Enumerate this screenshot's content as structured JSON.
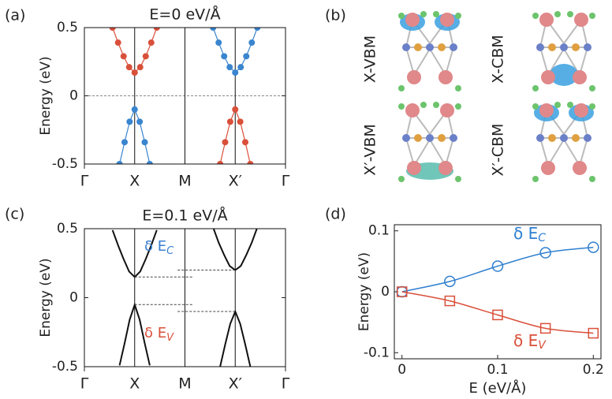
{
  "panel_labels": [
    "(a)",
    "(b)",
    "(c)",
    "(d)"
  ],
  "orbitals": {
    "labels": [
      "X-VBM",
      "X-CBM",
      "X′-VBM",
      "X′-CBM"
    ]
  },
  "chart_data": [
    {
      "type": "band",
      "title": "E=0  eV/Å",
      "ylabel": "Energy (eV)",
      "xlim": [
        0,
        4
      ],
      "ylim": [
        -0.5,
        0.5
      ],
      "yticks": [
        -0.5,
        0,
        0.5
      ],
      "xticks": [
        {
          "value": 0,
          "label": "Γ"
        },
        {
          "value": 1,
          "label": "X"
        },
        {
          "value": 2,
          "label": "M"
        },
        {
          "value": 3,
          "label": "X′"
        },
        {
          "value": 4,
          "label": "Γ"
        }
      ],
      "zero_line": true,
      "markers": true,
      "guides": false,
      "series": [
        {
          "color": "#d9503a",
          "x": [
            0.56,
            0.67,
            0.78,
            0.89,
            1,
            1.11,
            1.22,
            1.33,
            1.44
          ],
          "values": [
            0.5,
            0.39,
            0.29,
            0.21,
            0.17,
            0.21,
            0.29,
            0.39,
            0.5
          ]
        },
        {
          "color": "#3a85cf",
          "x": [
            0.7,
            0.8,
            0.9,
            1,
            1.1,
            1.2,
            1.3
          ],
          "values": [
            -0.5,
            -0.34,
            -0.19,
            -0.1,
            -0.19,
            -0.34,
            -0.5
          ]
        },
        {
          "color": "#3a85cf",
          "x": [
            2.56,
            2.67,
            2.78,
            2.89,
            3,
            3.11,
            3.22,
            3.33,
            3.44
          ],
          "values": [
            0.5,
            0.39,
            0.29,
            0.21,
            0.17,
            0.21,
            0.29,
            0.39,
            0.5
          ]
        },
        {
          "color": "#d9503a",
          "x": [
            2.7,
            2.8,
            2.9,
            3,
            3.1,
            3.2,
            3.3
          ],
          "values": [
            -0.5,
            -0.34,
            -0.19,
            -0.1,
            -0.19,
            -0.34,
            -0.5
          ]
        }
      ]
    },
    {
      "type": "band",
      "title": "E=0.1 eV/Å",
      "ylabel": "Energy (eV)",
      "xlim": [
        0,
        4
      ],
      "ylim": [
        -0.5,
        0.5
      ],
      "yticks": [
        -0.5,
        0,
        0.5
      ],
      "xticks": [
        {
          "value": 0,
          "label": "Γ"
        },
        {
          "value": 1,
          "label": "X"
        },
        {
          "value": 2,
          "label": "M"
        },
        {
          "value": 3,
          "label": "X′"
        },
        {
          "value": 4,
          "label": "Γ"
        }
      ],
      "zero_line": false,
      "markers": false,
      "guides": true,
      "annotations": [
        {
          "text": "δ E",
          "sub": "C",
          "color": "#3a7fd0"
        },
        {
          "text": "δ E",
          "sub": "V",
          "color": "#d9503a"
        }
      ],
      "series": [
        {
          "color": "#111111",
          "x": [
            0.56,
            0.67,
            0.78,
            0.89,
            1,
            1.11,
            1.22,
            1.33,
            1.44
          ],
          "values": [
            0.49,
            0.38,
            0.28,
            0.19,
            0.15,
            0.19,
            0.28,
            0.38,
            0.49
          ]
        },
        {
          "color": "#111111",
          "x": [
            0.7,
            0.8,
            0.9,
            1,
            1.1,
            1.2,
            1.3
          ],
          "values": [
            -0.49,
            -0.33,
            -0.16,
            -0.05,
            -0.16,
            -0.33,
            -0.49
          ]
        },
        {
          "color": "#111111",
          "x": [
            2.56,
            2.67,
            2.78,
            2.89,
            3,
            3.11,
            3.22,
            3.33,
            3.44
          ],
          "values": [
            0.51,
            0.4,
            0.31,
            0.23,
            0.2,
            0.23,
            0.31,
            0.4,
            0.51
          ]
        },
        {
          "color": "#111111",
          "x": [
            2.7,
            2.8,
            2.9,
            3,
            3.1,
            3.2,
            3.3
          ],
          "values": [
            -0.5,
            -0.34,
            -0.19,
            -0.1,
            -0.19,
            -0.34,
            -0.5
          ]
        }
      ]
    },
    {
      "type": "line",
      "xlabel": "E  (eV/Å)",
      "ylabel": "Energy (eV)",
      "x": [
        0,
        0.05,
        0.1,
        0.15,
        0.2
      ],
      "xlim": [
        -0.008,
        0.208
      ],
      "xticks": [
        0,
        0.1,
        0.2
      ],
      "ylim": [
        -0.11,
        0.11
      ],
      "yticks": [
        -0.1,
        0,
        0.1
      ],
      "series": [
        {
          "name": "δ E",
          "sub": "C",
          "color": "#2f7fd0",
          "marker": "circle",
          "values": [
            0,
            0.017,
            0.042,
            0.064,
            0.073
          ]
        },
        {
          "name": "δ E",
          "sub": "V",
          "color": "#d9503a",
          "marker": "square",
          "values": [
            0,
            -0.015,
            -0.038,
            -0.06,
            -0.068
          ]
        }
      ]
    }
  ]
}
